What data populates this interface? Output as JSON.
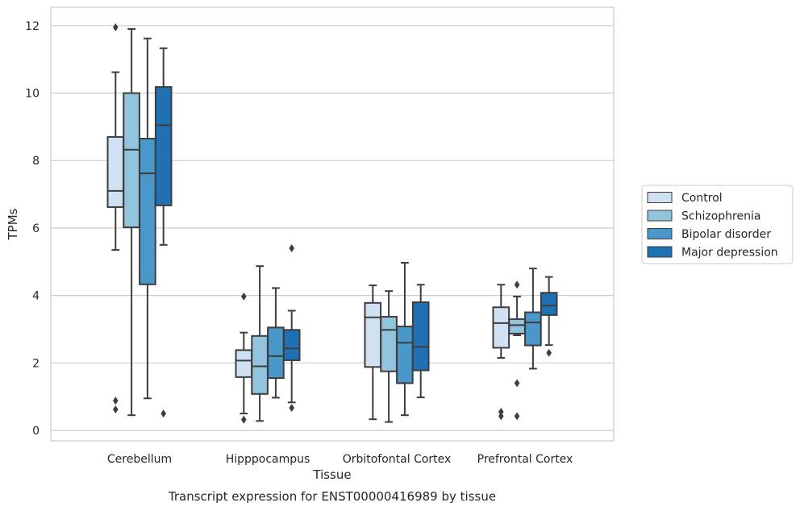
{
  "chart_data": {
    "type": "boxplot",
    "title": "",
    "caption": "Transcript expression for ENST00000416989 by tissue",
    "xlabel": "Tissue",
    "ylabel": "TPMs",
    "ylim": [
      -0.3,
      12.55
    ],
    "yticks": [
      0,
      2,
      4,
      6,
      8,
      10,
      12
    ],
    "grid": "horizontal",
    "legend_position": "right",
    "categories": [
      "Cerebellum",
      "Hipppocampus",
      "Orbitofontal Cortex",
      "Prefrontal Cortex"
    ],
    "series": [
      {
        "name": "Control",
        "color": "#cfe1f2",
        "boxes": [
          {
            "whislo": 5.35,
            "q1": 6.62,
            "med": 7.1,
            "q3": 8.7,
            "whishi": 10.62,
            "fliers": [
              11.95,
              0.88,
              0.62
            ]
          },
          {
            "whislo": 0.5,
            "q1": 1.58,
            "med": 2.07,
            "q3": 2.38,
            "whishi": 2.9,
            "fliers": [
              3.97,
              0.32
            ]
          },
          {
            "whislo": 0.33,
            "q1": 1.88,
            "med": 3.35,
            "q3": 3.78,
            "whishi": 4.3,
            "fliers": []
          },
          {
            "whislo": 2.15,
            "q1": 2.45,
            "med": 3.18,
            "q3": 3.65,
            "whishi": 4.32,
            "fliers": [
              0.55,
              0.42
            ]
          }
        ]
      },
      {
        "name": "Schizophrenia",
        "color": "#93c4de",
        "boxes": [
          {
            "whislo": 0.45,
            "q1": 6.02,
            "med": 8.32,
            "q3": 10.0,
            "whishi": 11.9,
            "fliers": []
          },
          {
            "whislo": 0.28,
            "q1": 1.08,
            "med": 1.9,
            "q3": 2.8,
            "whishi": 4.87,
            "fliers": []
          },
          {
            "whislo": 0.25,
            "q1": 1.75,
            "med": 2.98,
            "q3": 3.37,
            "whishi": 4.13,
            "fliers": []
          },
          {
            "whislo": 2.82,
            "q1": 2.87,
            "med": 3.12,
            "q3": 3.3,
            "whishi": 3.97,
            "fliers": [
              4.32,
              1.4,
              0.42
            ]
          }
        ]
      },
      {
        "name": "Bipolar disorder",
        "color": "#4a98c9",
        "boxes": [
          {
            "whislo": 0.95,
            "q1": 4.33,
            "med": 7.62,
            "q3": 8.65,
            "whishi": 11.62,
            "fliers": []
          },
          {
            "whislo": 0.97,
            "q1": 1.55,
            "med": 2.2,
            "q3": 3.05,
            "whishi": 4.22,
            "fliers": []
          },
          {
            "whislo": 0.45,
            "q1": 1.4,
            "med": 2.6,
            "q3": 3.08,
            "whishi": 4.97,
            "fliers": []
          },
          {
            "whislo": 1.83,
            "q1": 2.52,
            "med": 3.2,
            "q3": 3.5,
            "whishi": 4.8,
            "fliers": []
          }
        ]
      },
      {
        "name": "Major depression",
        "color": "#2070b4",
        "boxes": [
          {
            "whislo": 5.5,
            "q1": 6.67,
            "med": 9.05,
            "q3": 10.18,
            "whishi": 11.33,
            "fliers": [
              0.5
            ]
          },
          {
            "whislo": 0.83,
            "q1": 2.08,
            "med": 2.43,
            "q3": 2.98,
            "whishi": 3.55,
            "fliers": [
              5.4,
              0.67
            ]
          },
          {
            "whislo": 0.98,
            "q1": 1.78,
            "med": 2.48,
            "q3": 3.8,
            "whishi": 4.32,
            "fliers": []
          },
          {
            "whislo": 2.53,
            "q1": 3.42,
            "med": 3.7,
            "q3": 4.08,
            "whishi": 4.55,
            "fliers": [
              2.3
            ]
          }
        ]
      }
    ]
  }
}
